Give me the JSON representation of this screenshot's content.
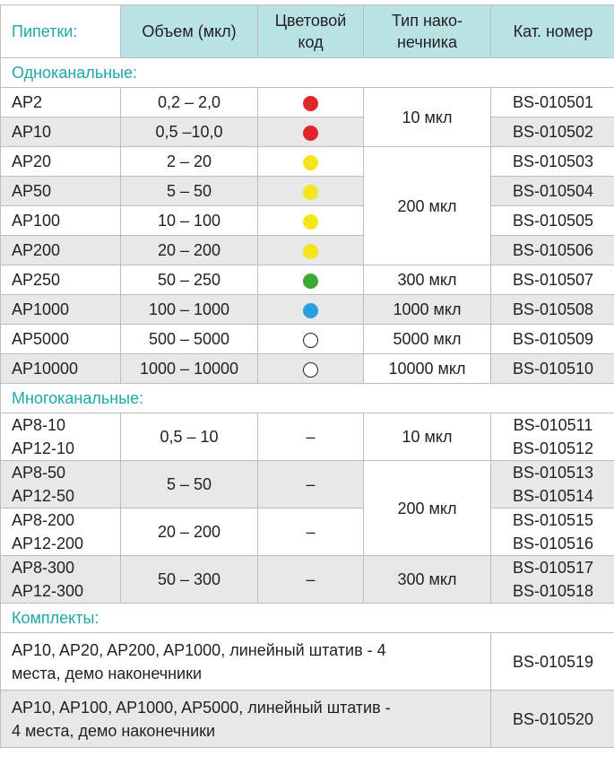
{
  "header": {
    "col1": "Пипетки:",
    "col2": "Объем (мкл)",
    "col3_line1": "Цветовой",
    "col3_line2": "код",
    "col4_line1": "Тип нако-",
    "col4_line2": "нечника",
    "col5": "Кат. номер"
  },
  "colors": {
    "red": "#e0262b",
    "yellow": "#f5e51c",
    "green": "#3aa935",
    "blue": "#2a9fe0",
    "white": "#ffffff"
  },
  "single": {
    "title": "Одноканальные:",
    "rows": [
      {
        "model": "AP2",
        "volume": "0,2 – 2,0",
        "color": "red",
        "cat": "BS-010501"
      },
      {
        "model": "AP10",
        "volume": "0,5 –10,0",
        "color": "red",
        "cat": "BS-010502"
      },
      {
        "model": "AP20",
        "volume": "2 – 20",
        "color": "yellow",
        "cat": "BS-010503"
      },
      {
        "model": "AP50",
        "volume": "5 – 50",
        "color": "yellow",
        "cat": "BS-010504"
      },
      {
        "model": "AP100",
        "volume": "10 – 100",
        "color": "yellow",
        "cat": "BS-010505"
      },
      {
        "model": "AP200",
        "volume": "20 – 200",
        "color": "yellow",
        "cat": "BS-010506"
      },
      {
        "model": "AP250",
        "volume": "50 – 250",
        "color": "green",
        "cat": "BS-010507"
      },
      {
        "model": "AP1000",
        "volume": "100 – 1000",
        "color": "blue",
        "cat": "BS-010508"
      },
      {
        "model": "AP5000",
        "volume": "500 – 5000",
        "color": "white",
        "cat": "BS-010509"
      },
      {
        "model": "AP10000",
        "volume": "1000 – 10000",
        "color": "white",
        "cat": "BS-010510"
      }
    ],
    "tips": [
      "10 мкл",
      "200 мкл",
      "300 мкл",
      "1000 мкл",
      "5000 мкл",
      "10000 мкл"
    ]
  },
  "multi": {
    "title": "Многоканальные:",
    "rows": [
      {
        "model1": "AP8-10",
        "model2": "AP12-10",
        "volume": "0,5 – 10",
        "color": "–",
        "cat1": "BS-010511",
        "cat2": "BS-010512"
      },
      {
        "model1": "AP8-50",
        "model2": "AP12-50",
        "volume": "5 – 50",
        "color": "–",
        "cat1": "BS-010513",
        "cat2": "BS-010514"
      },
      {
        "model1": "AP8-200",
        "model2": "AP12-200",
        "volume": "20 – 200",
        "color": "–",
        "cat1": "BS-010515",
        "cat2": "BS-010516"
      },
      {
        "model1": "AP8-300",
        "model2": "AP12-300",
        "volume": "50 – 300",
        "color": "–",
        "cat1": "BS-010517",
        "cat2": "BS-010518"
      }
    ],
    "tips": [
      "10 мкл",
      "200 мкл",
      "300 мкл"
    ]
  },
  "kits": {
    "title": "Комплекты:",
    "rows": [
      {
        "desc": "AP10, AP20, AP200, AP1000, линейный штатив - 4 места, демо наконечники",
        "cat": "BS-010519"
      },
      {
        "desc": "AP10, AP100, AP1000, AP5000, линейный штатив - 4 места, демо наконечники",
        "cat": "BS-010520"
      }
    ]
  }
}
